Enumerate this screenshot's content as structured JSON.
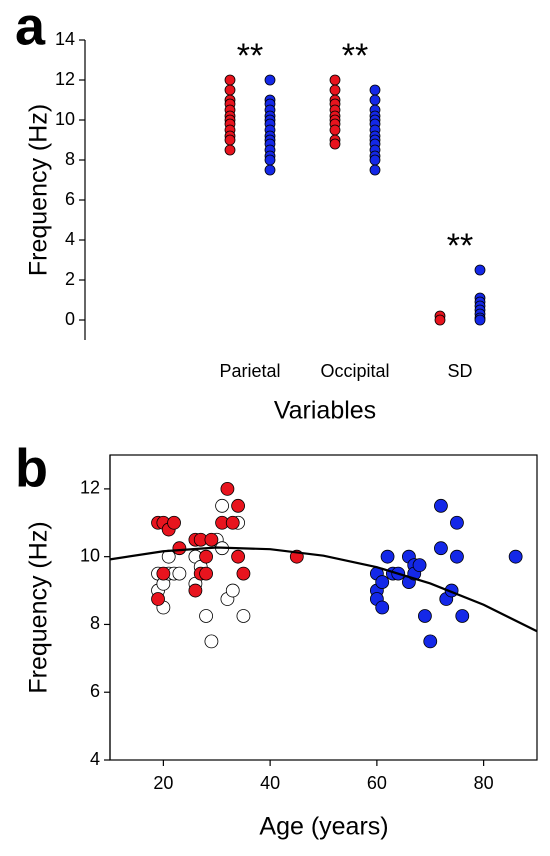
{
  "chart_data": [
    {
      "type": "strip",
      "panel_label": "a",
      "x_label": "Variables",
      "y_label": "Frequency (Hz)",
      "categories": [
        "Parietal",
        "Occipital",
        "SD"
      ],
      "annotations": [
        "**",
        "**",
        "**"
      ],
      "ylim": [
        -1,
        14
      ],
      "yticks": [
        0,
        2,
        4,
        6,
        8,
        10,
        12,
        14
      ],
      "series": [
        {
          "color": "#e8141e",
          "values": [
            [
              12,
              11.5,
              11,
              10.8,
              10.5,
              10.2,
              10,
              9.8,
              9.5,
              9.2,
              9,
              8.5
            ],
            [
              12,
              11.5,
              11,
              10.8,
              10.5,
              10.2,
              10,
              9.8,
              9.5,
              9,
              8.8
            ],
            [
              0.2,
              0
            ]
          ]
        },
        {
          "color": "#1428e8",
          "values": [
            [
              12,
              11,
              10.8,
              10.5,
              10.2,
              10,
              9.8,
              9.5,
              9.2,
              9,
              8.8,
              8.5,
              8.2,
              8,
              7.5
            ],
            [
              11.5,
              11,
              10.5,
              10.2,
              10,
              9.8,
              9.5,
              9.2,
              9,
              8.8,
              8.5,
              8.2,
              8,
              7.5
            ],
            [
              2.5,
              1.1,
              0.9,
              0.7,
              0.5,
              0.3,
              0.1,
              0
            ]
          ]
        }
      ]
    },
    {
      "type": "scatter",
      "panel_label": "b",
      "x_label": "Age (years)",
      "y_label": "Frequency (Hz)",
      "xlim": [
        10,
        90
      ],
      "xticks": [
        20,
        40,
        60,
        80
      ],
      "ylim": [
        4,
        13
      ],
      "yticks": [
        4,
        6,
        8,
        10,
        12
      ],
      "frame": true,
      "series": [
        {
          "type": "scatter",
          "color": "#ffffff",
          "x": [
            19,
            19,
            20,
            20,
            21,
            21,
            22,
            23,
            26,
            26,
            27,
            28,
            29,
            30,
            31,
            31,
            32,
            33,
            34,
            35
          ],
          "values": [
            9.5,
            9,
            8.5,
            9.2,
            9.5,
            10,
            9.5,
            9.5,
            10,
            9.2,
            9.7,
            8.25,
            7.5,
            10.5,
            11.5,
            10.25,
            8.75,
            9,
            11,
            8.25
          ]
        },
        {
          "type": "scatter",
          "color": "#e8141e",
          "x": [
            19,
            20,
            21,
            22,
            19,
            20,
            23,
            26,
            27,
            28,
            29,
            26,
            27,
            28,
            31,
            32,
            33,
            34,
            34,
            35,
            45
          ],
          "values": [
            11,
            11,
            10.8,
            11,
            8.75,
            9.5,
            10.25,
            10.5,
            10.5,
            10,
            10.5,
            9,
            9.5,
            9.5,
            11,
            12,
            11,
            11.5,
            10,
            9.5,
            10
          ]
        },
        {
          "type": "scatter",
          "color": "#1428e8",
          "x": [
            60,
            60,
            60,
            61,
            61,
            62,
            63,
            64,
            66,
            66,
            67,
            67,
            68,
            69,
            70,
            72,
            72,
            73,
            74,
            75,
            75,
            76,
            86
          ],
          "values": [
            9.5,
            9,
            8.75,
            9.25,
            8.5,
            10,
            9.5,
            9.5,
            10,
            9.25,
            9.75,
            9.5,
            9.75,
            8.25,
            7.5,
            11.5,
            10.25,
            8.75,
            9,
            11,
            10,
            8.25,
            10
          ]
        },
        {
          "type": "line",
          "color": "#000000",
          "x": [
            10,
            20,
            30,
            40,
            50,
            60,
            70,
            80,
            90
          ],
          "values": [
            9.92,
            10.16,
            10.27,
            10.22,
            10.03,
            9.69,
            9.21,
            8.58,
            7.8
          ]
        }
      ]
    }
  ]
}
